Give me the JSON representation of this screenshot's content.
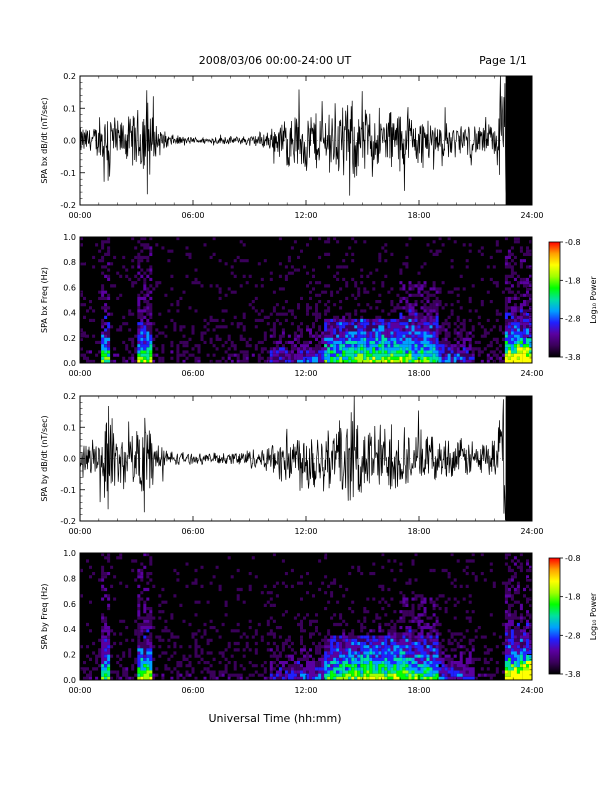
{
  "header": {
    "title": "2008/03/06  00:00-24:00 UT",
    "page": "Page 1/1"
  },
  "footer": {
    "xlabel": "Universal Time (hh:mm)"
  },
  "colors": {
    "frame": "#000000",
    "trace": "#000000",
    "spectrogram_bg": "#000000"
  },
  "colorbar": {
    "label": "Log₁₀ Power",
    "ticks": [
      "-0.8",
      "-1.8",
      "-2.8",
      "-3.8"
    ],
    "tick_values": [
      -0.8,
      -1.8,
      -2.8,
      -3.8
    ],
    "range": [
      -3.8,
      -0.8
    ],
    "colormap": [
      "#000000",
      "#3a005a",
      "#5a00a0",
      "#2020ff",
      "#00a0ff",
      "#00e0a0",
      "#00ff00",
      "#a0ff00",
      "#ffff00",
      "#ffa000",
      "#ff0000"
    ]
  },
  "x_ticks": [
    "00:00",
    "06:00",
    "12:00",
    "18:00",
    "24:00"
  ],
  "chart_data": [
    {
      "type": "line",
      "ylabel": "SPA bx dB/dt (nT/sec)",
      "xlim": [
        0,
        24
      ],
      "ylim": [
        -0.2,
        0.2
      ],
      "yticks": [
        "0.2",
        "0.1",
        "0.0",
        "-0.1",
        "-0.2"
      ],
      "ytick_values": [
        0.2,
        0.1,
        0.0,
        -0.1,
        -0.2
      ],
      "x_ticks": [
        "00:00",
        "06:00",
        "12:00",
        "18:00",
        "24:00"
      ],
      "x": [
        0,
        1,
        1.5,
        2,
        3,
        3.5,
        4,
        5,
        6,
        7,
        8,
        9,
        10,
        11,
        12,
        13,
        14,
        15,
        16,
        17,
        18,
        19,
        20,
        21,
        22,
        22.5,
        23,
        24
      ],
      "amplitude": [
        0.04,
        0.05,
        0.15,
        0.06,
        0.08,
        0.18,
        0.05,
        0.015,
        0.01,
        0.01,
        0.012,
        0.015,
        0.03,
        0.08,
        0.1,
        0.09,
        0.12,
        0.11,
        0.1,
        0.1,
        0.08,
        0.06,
        0.05,
        0.05,
        0.05,
        0.2,
        0.2,
        0.2
      ]
    },
    {
      "type": "heatmap",
      "ylabel": "SPA bx Freq (Hz)",
      "xlim": [
        0,
        24
      ],
      "ylim": [
        0,
        1.0
      ],
      "yticks": [
        "1.0",
        "0.8",
        "0.6",
        "0.4",
        "0.2",
        "0.0"
      ],
      "ytick_values": [
        1.0,
        0.8,
        0.6,
        0.4,
        0.2,
        0.0
      ],
      "x_ticks": [
        "00:00",
        "06:00",
        "12:00",
        "18:00",
        "24:00"
      ],
      "zlim": [
        -3.8,
        -0.8
      ]
    },
    {
      "type": "line",
      "ylabel": "SPA by dB/dt (nT/sec)",
      "xlim": [
        0,
        24
      ],
      "ylim": [
        -0.2,
        0.2
      ],
      "yticks": [
        "0.2",
        "0.1",
        "0.0",
        "-0.1",
        "-0.2"
      ],
      "ytick_values": [
        0.2,
        0.1,
        0.0,
        -0.1,
        -0.2
      ],
      "x_ticks": [
        "00:00",
        "06:00",
        "12:00",
        "18:00",
        "24:00"
      ],
      "x": [
        0,
        1,
        1.5,
        2,
        3,
        3.5,
        4,
        5,
        6,
        7,
        8,
        9,
        10,
        11,
        12,
        13,
        14,
        15,
        16,
        17,
        18,
        19,
        20,
        21,
        22,
        22.5,
        23,
        24
      ],
      "amplitude": [
        0.03,
        0.06,
        0.17,
        0.07,
        0.08,
        0.2,
        0.05,
        0.02,
        0.015,
        0.015,
        0.02,
        0.03,
        0.04,
        0.09,
        0.1,
        0.11,
        0.13,
        0.12,
        0.11,
        0.1,
        0.08,
        0.06,
        0.06,
        0.06,
        0.06,
        0.2,
        0.2,
        0.2
      ]
    },
    {
      "type": "heatmap",
      "ylabel": "SPA by Freq (Hz)",
      "xlim": [
        0,
        24
      ],
      "ylim": [
        0,
        1.0
      ],
      "yticks": [
        "1.0",
        "0.8",
        "0.6",
        "0.4",
        "0.2",
        "0.0"
      ],
      "ytick_values": [
        1.0,
        0.8,
        0.6,
        0.4,
        0.2,
        0.0
      ],
      "x_ticks": [
        "00:00",
        "06:00",
        "12:00",
        "18:00",
        "24:00"
      ],
      "zlim": [
        -3.8,
        -0.8
      ]
    }
  ]
}
